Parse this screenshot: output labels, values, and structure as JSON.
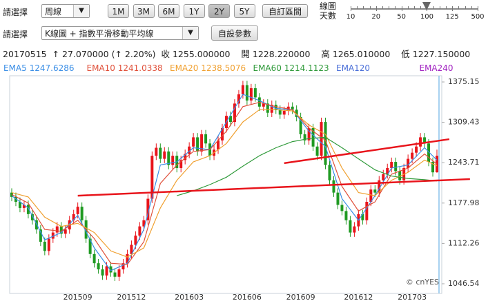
{
  "controls": {
    "row1_label": "請選擇",
    "period_select": "周線",
    "range_buttons": [
      "1M",
      "3M",
      "6M",
      "1Y",
      "2Y",
      "5Y"
    ],
    "active_range": "2Y",
    "custom_range": "自訂區間",
    "slider_label": [
      "線圖",
      "天數"
    ],
    "slider_ticks": [
      "10",
      "20",
      "50",
      "100",
      "125",
      "500"
    ],
    "slider_value": "100",
    "row2_label": "請選擇",
    "chart_select": "K線圖 + 指數平滑移動平均線",
    "param_button": "自設參數"
  },
  "quote": {
    "date": "20170515",
    "change": "↑ 27.070000",
    "change_pct": "(↑ 2.20%)",
    "close_label": "收",
    "close": "1255.000000",
    "open_label": "開",
    "open": "1228.220000",
    "high_label": "高",
    "high": "1265.010000",
    "low_label": "低",
    "low": "1227.150000"
  },
  "chart_data": {
    "type": "candlestick",
    "watermark": "© cnYES",
    "up_color": "#e8141b",
    "down_color": "#1f9a22",
    "ylim": [
      1032,
      1383
    ],
    "yticks": [
      1375.15,
      1309.43,
      1243.71,
      1177.98,
      1112.26,
      1046.54
    ],
    "grid": false,
    "categories": [
      null,
      null,
      null,
      null,
      null,
      null,
      null,
      null,
      null,
      null,
      null,
      null,
      null,
      null,
      null,
      null,
      "201509",
      null,
      null,
      null,
      null,
      null,
      null,
      null,
      null,
      null,
      null,
      null,
      null,
      "201512",
      null,
      null,
      null,
      null,
      null,
      null,
      null,
      null,
      null,
      null,
      null,
      null,
      null,
      "201603",
      null,
      null,
      null,
      null,
      null,
      null,
      null,
      null,
      null,
      null,
      null,
      null,
      null,
      "201606",
      null,
      null,
      null,
      null,
      null,
      null,
      null,
      null,
      null,
      null,
      null,
      null,
      "201609",
      null,
      null,
      null,
      null,
      null,
      null,
      null,
      null,
      null,
      null,
      null,
      null,
      null,
      "201612",
      null,
      null,
      null,
      null,
      null,
      null,
      null,
      null,
      null,
      null,
      null,
      null,
      "201703",
      null,
      null,
      null,
      null,
      null,
      null
    ],
    "candles": [
      [
        1195,
        1202,
        1181,
        1188
      ],
      [
        1188,
        1195,
        1173,
        1180
      ],
      [
        1180,
        1187,
        1163,
        1170
      ],
      [
        1170,
        1182,
        1163,
        1175
      ],
      [
        1175,
        1182,
        1153,
        1160
      ],
      [
        1160,
        1167,
        1143,
        1150
      ],
      [
        1150,
        1157,
        1128,
        1135
      ],
      [
        1135,
        1142,
        1108,
        1115
      ],
      [
        1115,
        1122,
        1093,
        1100
      ],
      [
        1100,
        1127,
        1093,
        1120
      ],
      [
        1120,
        1137,
        1113,
        1130
      ],
      [
        1130,
        1147,
        1123,
        1140
      ],
      [
        1140,
        1147,
        1121,
        1128
      ],
      [
        1128,
        1142,
        1121,
        1135
      ],
      [
        1135,
        1157,
        1128,
        1150
      ],
      [
        1150,
        1167,
        1143,
        1160
      ],
      [
        1160,
        1179,
        1153,
        1172
      ],
      [
        1172,
        1179,
        1143,
        1150
      ],
      [
        1150,
        1157,
        1113,
        1120
      ],
      [
        1120,
        1127,
        1088,
        1095
      ],
      [
        1095,
        1102,
        1073,
        1080
      ],
      [
        1080,
        1087,
        1063,
        1070
      ],
      [
        1070,
        1077,
        1053,
        1060
      ],
      [
        1060,
        1082,
        1053,
        1075
      ],
      [
        1075,
        1082,
        1058,
        1065
      ],
      [
        1065,
        1072,
        1051,
        1058
      ],
      [
        1058,
        1077,
        1051,
        1070
      ],
      [
        1070,
        1087,
        1063,
        1080
      ],
      [
        1080,
        1102,
        1073,
        1095
      ],
      [
        1095,
        1117,
        1088,
        1110
      ],
      [
        1110,
        1132,
        1103,
        1125
      ],
      [
        1125,
        1147,
        1118,
        1140
      ],
      [
        1140,
        1157,
        1133,
        1150
      ],
      [
        1150,
        1192,
        1143,
        1185
      ],
      [
        1185,
        1262,
        1178,
        1255
      ],
      [
        1255,
        1275,
        1248,
        1268
      ],
      [
        1268,
        1275,
        1243,
        1250
      ],
      [
        1250,
        1269,
        1243,
        1262
      ],
      [
        1262,
        1269,
        1233,
        1240
      ],
      [
        1240,
        1262,
        1233,
        1255
      ],
      [
        1255,
        1262,
        1228,
        1235
      ],
      [
        1235,
        1255,
        1228,
        1248
      ],
      [
        1248,
        1265,
        1241,
        1258
      ],
      [
        1258,
        1277,
        1251,
        1270
      ],
      [
        1270,
        1292,
        1263,
        1285
      ],
      [
        1285,
        1292,
        1255,
        1262
      ],
      [
        1262,
        1297,
        1255,
        1290
      ],
      [
        1290,
        1297,
        1268,
        1275
      ],
      [
        1275,
        1282,
        1248,
        1255
      ],
      [
        1255,
        1272,
        1248,
        1265
      ],
      [
        1265,
        1287,
        1258,
        1280
      ],
      [
        1280,
        1307,
        1273,
        1300
      ],
      [
        1300,
        1327,
        1293,
        1320
      ],
      [
        1320,
        1327,
        1303,
        1310
      ],
      [
        1310,
        1347,
        1303,
        1340
      ],
      [
        1340,
        1362,
        1333,
        1355
      ],
      [
        1355,
        1377,
        1348,
        1370
      ],
      [
        1370,
        1377,
        1338,
        1345
      ],
      [
        1345,
        1372,
        1338,
        1365
      ],
      [
        1365,
        1372,
        1343,
        1350
      ],
      [
        1350,
        1357,
        1328,
        1335
      ],
      [
        1335,
        1347,
        1328,
        1340
      ],
      [
        1340,
        1347,
        1318,
        1325
      ],
      [
        1325,
        1345,
        1318,
        1338
      ],
      [
        1338,
        1345,
        1323,
        1330
      ],
      [
        1330,
        1337,
        1315,
        1322
      ],
      [
        1322,
        1335,
        1315,
        1328
      ],
      [
        1328,
        1342,
        1321,
        1335
      ],
      [
        1335,
        1342,
        1323,
        1330
      ],
      [
        1330,
        1337,
        1311,
        1318
      ],
      [
        1318,
        1325,
        1283,
        1290
      ],
      [
        1290,
        1297,
        1273,
        1280
      ],
      [
        1280,
        1307,
        1273,
        1300
      ],
      [
        1300,
        1307,
        1263,
        1270
      ],
      [
        1270,
        1277,
        1248,
        1255
      ],
      [
        1255,
        1317,
        1248,
        1310
      ],
      [
        1310,
        1317,
        1233,
        1240
      ],
      [
        1240,
        1247,
        1208,
        1215
      ],
      [
        1215,
        1222,
        1188,
        1195
      ],
      [
        1195,
        1202,
        1168,
        1175
      ],
      [
        1175,
        1182,
        1158,
        1165
      ],
      [
        1165,
        1172,
        1143,
        1150
      ],
      [
        1150,
        1157,
        1123,
        1130
      ],
      [
        1130,
        1147,
        1123,
        1140
      ],
      [
        1140,
        1167,
        1133,
        1160
      ],
      [
        1160,
        1167,
        1143,
        1150
      ],
      [
        1150,
        1187,
        1143,
        1180
      ],
      [
        1180,
        1207,
        1173,
        1200
      ],
      [
        1200,
        1207,
        1188,
        1195
      ],
      [
        1195,
        1222,
        1188,
        1215
      ],
      [
        1215,
        1232,
        1208,
        1225
      ],
      [
        1225,
        1242,
        1218,
        1235
      ],
      [
        1235,
        1252,
        1228,
        1245
      ],
      [
        1245,
        1252,
        1223,
        1230
      ],
      [
        1230,
        1237,
        1208,
        1215
      ],
      [
        1215,
        1242,
        1208,
        1235
      ],
      [
        1235,
        1257,
        1228,
        1250
      ],
      [
        1250,
        1267,
        1243,
        1260
      ],
      [
        1260,
        1277,
        1253,
        1270
      ],
      [
        1270,
        1292,
        1263,
        1285
      ],
      [
        1285,
        1292,
        1268,
        1275
      ],
      [
        1275,
        1282,
        1238,
        1245
      ],
      [
        1245,
        1252,
        1221,
        1228
      ],
      [
        1228.22,
        1265.01,
        1227.15,
        1255
      ]
    ],
    "x": [
      0,
      4,
      8,
      12,
      16,
      20,
      24,
      28,
      32,
      36,
      40,
      44,
      48,
      52,
      56,
      60,
      64,
      68,
      72,
      76,
      80,
      84,
      88,
      92,
      96,
      100,
      103
    ],
    "series": [
      {
        "name": "EMA5",
        "legend_value": "1247.6286",
        "color": "#3a8ee6",
        "values": [
          1190,
          1170,
          1118,
          1130,
          1158,
          1105,
          1068,
          1080,
          1135,
          1240,
          1245,
          1268,
          1265,
          1310,
          1355,
          1345,
          1332,
          1330,
          1295,
          1270,
          1185,
          1150,
          1190,
          1235,
          1240,
          1268,
          1248
        ]
      },
      {
        "name": "EMA10",
        "legend_value": "1241.0338",
        "color": "#e0503a",
        "values": [
          1192,
          1178,
          1135,
          1132,
          1150,
          1120,
          1080,
          1078,
          1115,
          1210,
          1240,
          1262,
          1265,
          1295,
          1335,
          1342,
          1335,
          1330,
          1300,
          1280,
          1205,
          1165,
          1180,
          1225,
          1235,
          1258,
          1241
        ]
      },
      {
        "name": "EMA20",
        "legend_value": "1238.5076",
        "color": "#f0a030",
        "values": [
          1195,
          1188,
          1155,
          1140,
          1145,
          1130,
          1100,
          1090,
          1105,
          1170,
          1215,
          1245,
          1255,
          1275,
          1310,
          1330,
          1330,
          1328,
          1305,
          1290,
          1235,
          1195,
          1190,
          1215,
          1228,
          1248,
          1238.5
        ]
      },
      {
        "name": "EMA60",
        "legend_value": "1214.1123",
        "color": "#2f9a3a",
        "values": [
          null,
          null,
          null,
          null,
          null,
          null,
          null,
          null,
          null,
          null,
          1190,
          1198,
          1208,
          1220,
          1238,
          1255,
          1268,
          1278,
          1283,
          1285,
          1268,
          1250,
          1232,
          1222,
          1218,
          1216,
          1214
        ]
      },
      {
        "name": "EMA120",
        "color": "#4a6fd8",
        "values": [
          null,
          null,
          null,
          null,
          null,
          null,
          null,
          null,
          null,
          null,
          null,
          null,
          null,
          null,
          null,
          null,
          null,
          null,
          null,
          null,
          null,
          null,
          null,
          null,
          null,
          null,
          null
        ]
      },
      {
        "name": "EMA240",
        "color": "#a020c0",
        "values": [
          null,
          null,
          null,
          null,
          null,
          null,
          null,
          null,
          null,
          null,
          null,
          null,
          null,
          null,
          null,
          null,
          null,
          null,
          null,
          null,
          null,
          null,
          null,
          null,
          null,
          null,
          null
        ]
      }
    ],
    "trendlines": [
      {
        "color": "#e8141b",
        "x": [
          16,
          111
        ],
        "values": [
          1190,
          1217
        ]
      },
      {
        "color": "#e8141b",
        "x": [
          66,
          106
        ],
        "values": [
          1243,
          1282
        ]
      }
    ]
  }
}
